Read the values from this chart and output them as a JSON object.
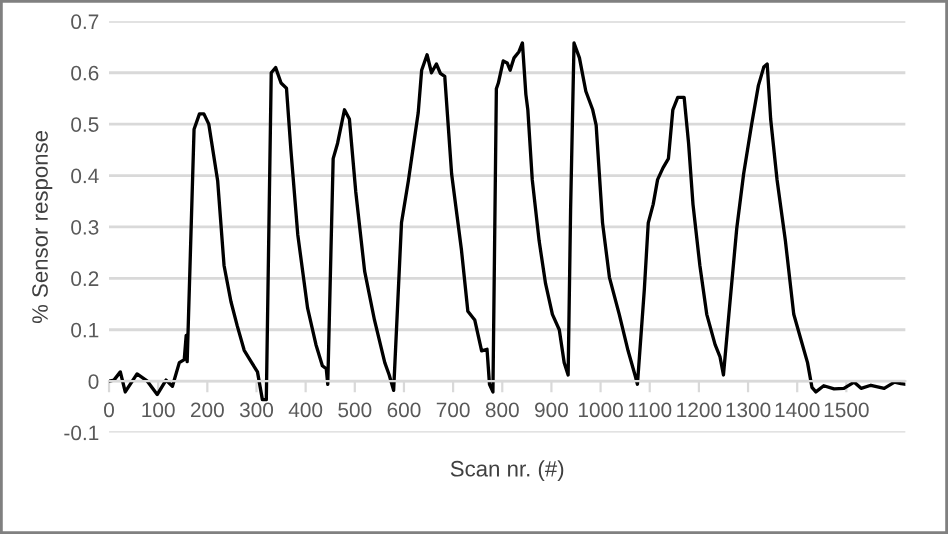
{
  "chart_data": {
    "type": "line",
    "xlabel": "Scan nr. (#)",
    "ylabel": "% Sensor response",
    "x": [
      0,
      10,
      23,
      33,
      57,
      78,
      98,
      116,
      129,
      143,
      153,
      157,
      159,
      173,
      184,
      193,
      203,
      221,
      234,
      248,
      261,
      275,
      289,
      302,
      312,
      320,
      330,
      339,
      350,
      361,
      370,
      384,
      404,
      421,
      434,
      442,
      445,
      456,
      465,
      479,
      489,
      502,
      520,
      540,
      561,
      570,
      579,
      595,
      609,
      620,
      629,
      636,
      647,
      656,
      666,
      674,
      683,
      697,
      717,
      730,
      744,
      758,
      769,
      774,
      781,
      788,
      792,
      802,
      810,
      816,
      824,
      834,
      841,
      848,
      852,
      861,
      875,
      888,
      902,
      916,
      926,
      934,
      939,
      946,
      957,
      970,
      984,
      991,
      1004,
      1018,
      1038,
      1056,
      1070,
      1075,
      1089,
      1097,
      1107,
      1116,
      1127,
      1138,
      1147,
      1157,
      1170,
      1179,
      1188,
      1202,
      1216,
      1233,
      1243,
      1250,
      1261,
      1277,
      1291,
      1307,
      1321,
      1332,
      1339,
      1346,
      1359,
      1376,
      1393,
      1407,
      1421,
      1430,
      1438,
      1454,
      1475,
      1495,
      1516,
      1530,
      1550,
      1577,
      1598,
      1611,
      1620
    ],
    "series": [
      {
        "color": "#000000",
        "values": [
          0,
          0.002,
          0.018,
          -0.021,
          0.014,
          0,
          -0.026,
          0.002,
          -0.01,
          0.036,
          0.042,
          0.089,
          0.038,
          0.49,
          0.52,
          0.52,
          0.5,
          0.39,
          0.225,
          0.155,
          0.107,
          0.06,
          0.038,
          0.018,
          -0.036,
          -0.036,
          0.6,
          0.61,
          0.58,
          0.57,
          0.45,
          0.285,
          0.142,
          0.071,
          0.03,
          0.024,
          -0.006,
          0.433,
          0.463,
          0.528,
          0.51,
          0.368,
          0.214,
          0.119,
          0.036,
          0.012,
          -0.018,
          0.308,
          0.39,
          0.463,
          0.522,
          0.605,
          0.635,
          0.6,
          0.617,
          0.599,
          0.593,
          0.403,
          0.255,
          0.136,
          0.119,
          0.059,
          0.062,
          -0.006,
          -0.021,
          0.569,
          0.58,
          0.623,
          0.619,
          0.605,
          0.629,
          0.641,
          0.658,
          0.558,
          0.528,
          0.392,
          0.273,
          0.19,
          0.13,
          0.1,
          0.036,
          0.012,
          0.332,
          0.658,
          0.629,
          0.564,
          0.528,
          0.498,
          0.308,
          0.202,
          0.13,
          0.059,
          0.012,
          -0.006,
          0.178,
          0.308,
          0.344,
          0.392,
          0.415,
          0.433,
          0.528,
          0.552,
          0.552,
          0.463,
          0.344,
          0.225,
          0.13,
          0.071,
          0.047,
          0.012,
          0.13,
          0.297,
          0.403,
          0.498,
          0.575,
          0.611,
          0.617,
          0.51,
          0.392,
          0.273,
          0.13,
          0.083,
          0.036,
          -0.012,
          -0.021,
          -0.009,
          -0.015,
          -0.014,
          -0.002,
          -0.014,
          -0.008,
          -0.014,
          -0.002,
          -0.005,
          -0.006
        ]
      }
    ],
    "xlim": [
      0,
      1620
    ],
    "ylim": [
      -0.1,
      0.7
    ],
    "xticks": [
      0,
      100,
      200,
      300,
      400,
      500,
      600,
      700,
      800,
      900,
      1000,
      1100,
      1200,
      1300,
      1400,
      1500
    ],
    "yticks": [
      -0.1,
      0,
      0.1,
      0.2,
      0.3,
      0.4,
      0.5,
      0.6,
      0.7
    ],
    "grid": "y",
    "marker": "none",
    "line_style": "solid"
  }
}
